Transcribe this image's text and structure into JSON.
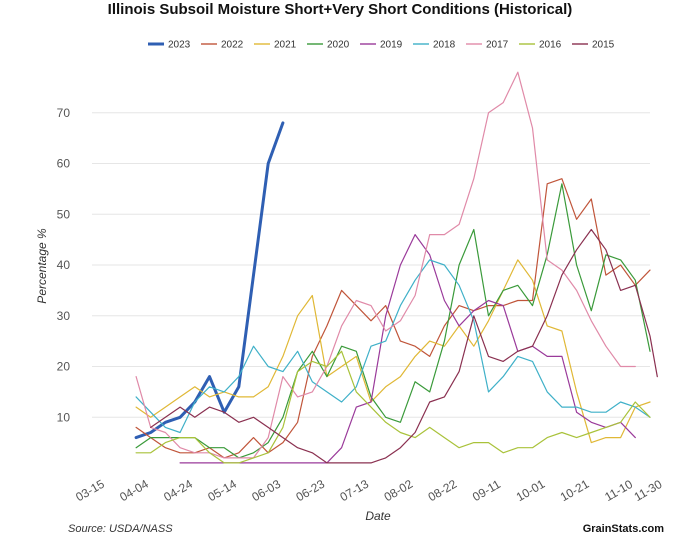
{
  "chart_data": {
    "type": "line",
    "title": "Illinois Subsoil Moisture Short+Very Short Conditions (Historical)",
    "xlabel": "Date",
    "ylabel": "Percentage %",
    "source": "Source: USDA/NASS",
    "brand": "GrainStats.com",
    "ylim": [
      0,
      80
    ],
    "yticks": [
      10,
      20,
      30,
      40,
      50,
      60,
      70
    ],
    "xlim": [
      0,
      38
    ],
    "x_ticks": [
      {
        "label": "03-15",
        "x": 0
      },
      {
        "label": "04-04",
        "x": 3
      },
      {
        "label": "04-24",
        "x": 6
      },
      {
        "label": "05-14",
        "x": 9
      },
      {
        "label": "06-03",
        "x": 12
      },
      {
        "label": "06-23",
        "x": 15
      },
      {
        "label": "07-13",
        "x": 18
      },
      {
        "label": "08-02",
        "x": 21
      },
      {
        "label": "08-22",
        "x": 24
      },
      {
        "label": "09-11",
        "x": 27
      },
      {
        "label": "10-01",
        "x": 30
      },
      {
        "label": "10-21",
        "x": 33
      },
      {
        "label": "11-10",
        "x": 36
      },
      {
        "label": "11-30",
        "x": 38
      }
    ],
    "series": [
      {
        "name": "2023",
        "color": "#2f5fb3",
        "width": 3,
        "points": [
          [
            3,
            6
          ],
          [
            4,
            7
          ],
          [
            5,
            9
          ],
          [
            6,
            10
          ],
          [
            7,
            13
          ],
          [
            8,
            18
          ],
          [
            9,
            11
          ],
          [
            10,
            16
          ],
          [
            11,
            38
          ],
          [
            12,
            60
          ],
          [
            13,
            68
          ]
        ]
      },
      {
        "name": "2022",
        "color": "#c0553a",
        "width": 1.2,
        "points": [
          [
            3,
            8
          ],
          [
            4,
            6
          ],
          [
            5,
            4
          ],
          [
            6,
            3
          ],
          [
            7,
            3
          ],
          [
            8,
            4
          ],
          [
            9,
            2
          ],
          [
            10,
            3
          ],
          [
            11,
            6
          ],
          [
            12,
            3
          ],
          [
            13,
            5
          ],
          [
            14,
            9
          ],
          [
            15,
            22
          ],
          [
            16,
            28
          ],
          [
            17,
            35
          ],
          [
            18,
            32
          ],
          [
            19,
            29
          ],
          [
            20,
            32
          ],
          [
            21,
            25
          ],
          [
            22,
            24
          ],
          [
            23,
            22
          ],
          [
            24,
            28
          ],
          [
            25,
            32
          ],
          [
            26,
            31
          ],
          [
            27,
            32
          ],
          [
            28,
            32
          ],
          [
            29,
            33
          ],
          [
            30,
            33
          ],
          [
            31,
            56
          ],
          [
            32,
            57
          ],
          [
            33,
            49
          ],
          [
            34,
            53
          ],
          [
            35,
            38
          ],
          [
            36,
            40
          ],
          [
            37,
            36
          ],
          [
            38,
            39
          ]
        ]
      },
      {
        "name": "2021",
        "color": "#e0b836",
        "width": 1.2,
        "points": [
          [
            3,
            12
          ],
          [
            4,
            10
          ],
          [
            5,
            12
          ],
          [
            6,
            14
          ],
          [
            7,
            16
          ],
          [
            8,
            14
          ],
          [
            9,
            15
          ],
          [
            10,
            14
          ],
          [
            11,
            14
          ],
          [
            12,
            16
          ],
          [
            13,
            22
          ],
          [
            14,
            30
          ],
          [
            15,
            34
          ],
          [
            16,
            18
          ],
          [
            17,
            20
          ],
          [
            18,
            22
          ],
          [
            19,
            13
          ],
          [
            20,
            16
          ],
          [
            21,
            18
          ],
          [
            22,
            22
          ],
          [
            23,
            25
          ],
          [
            24,
            24
          ],
          [
            25,
            28
          ],
          [
            26,
            24
          ],
          [
            27,
            29
          ],
          [
            28,
            35
          ],
          [
            29,
            41
          ],
          [
            30,
            37
          ],
          [
            31,
            28
          ],
          [
            32,
            27
          ],
          [
            33,
            15
          ],
          [
            34,
            5
          ],
          [
            35,
            6
          ],
          [
            36,
            6
          ],
          [
            37,
            12
          ],
          [
            38,
            13
          ]
        ]
      },
      {
        "name": "2020",
        "color": "#3a9a3a",
        "width": 1.2,
        "points": [
          [
            3,
            4
          ],
          [
            4,
            6
          ],
          [
            5,
            6
          ],
          [
            6,
            6
          ],
          [
            7,
            6
          ],
          [
            8,
            4
          ],
          [
            9,
            4
          ],
          [
            10,
            2
          ],
          [
            11,
            3
          ],
          [
            12,
            5
          ],
          [
            13,
            10
          ],
          [
            14,
            19
          ],
          [
            15,
            23
          ],
          [
            16,
            18
          ],
          [
            17,
            24
          ],
          [
            18,
            23
          ],
          [
            19,
            14
          ],
          [
            20,
            10
          ],
          [
            21,
            9
          ],
          [
            22,
            17
          ],
          [
            23,
            15
          ],
          [
            24,
            25
          ],
          [
            25,
            40
          ],
          [
            26,
            47
          ],
          [
            27,
            30
          ],
          [
            28,
            35
          ],
          [
            29,
            36
          ],
          [
            30,
            32
          ],
          [
            31,
            42
          ],
          [
            32,
            56
          ],
          [
            33,
            40
          ],
          [
            34,
            31
          ],
          [
            35,
            42
          ],
          [
            36,
            41
          ],
          [
            37,
            37
          ],
          [
            38,
            23
          ]
        ]
      },
      {
        "name": "2019",
        "color": "#9a3a9a",
        "width": 1.2,
        "points": [
          [
            6,
            1
          ],
          [
            7,
            1
          ],
          [
            8,
            1
          ],
          [
            9,
            1
          ],
          [
            10,
            1
          ],
          [
            11,
            1
          ],
          [
            12,
            1
          ],
          [
            13,
            1
          ],
          [
            14,
            1
          ],
          [
            15,
            1
          ],
          [
            16,
            1
          ],
          [
            17,
            4
          ],
          [
            18,
            12
          ],
          [
            19,
            13
          ],
          [
            20,
            30
          ],
          [
            21,
            40
          ],
          [
            22,
            46
          ],
          [
            23,
            42
          ],
          [
            24,
            33
          ],
          [
            25,
            28
          ],
          [
            26,
            31
          ],
          [
            27,
            33
          ],
          [
            28,
            32
          ],
          [
            29,
            23
          ],
          [
            30,
            24
          ],
          [
            31,
            22
          ],
          [
            32,
            22
          ],
          [
            33,
            11
          ],
          [
            34,
            9
          ],
          [
            35,
            8
          ],
          [
            36,
            9
          ],
          [
            37,
            6
          ]
        ]
      },
      {
        "name": "2018",
        "color": "#3fb0c8",
        "width": 1.2,
        "points": [
          [
            3,
            14
          ],
          [
            4,
            11
          ],
          [
            5,
            8
          ],
          [
            6,
            7
          ],
          [
            7,
            13
          ],
          [
            8,
            16
          ],
          [
            9,
            15
          ],
          [
            10,
            18
          ],
          [
            11,
            24
          ],
          [
            12,
            20
          ],
          [
            13,
            19
          ],
          [
            14,
            23
          ],
          [
            15,
            17
          ],
          [
            16,
            15
          ],
          [
            17,
            13
          ],
          [
            18,
            16
          ],
          [
            19,
            24
          ],
          [
            20,
            25
          ],
          [
            21,
            32
          ],
          [
            22,
            37
          ],
          [
            23,
            41
          ],
          [
            24,
            40
          ],
          [
            25,
            36
          ],
          [
            26,
            29
          ],
          [
            27,
            15
          ],
          [
            28,
            18
          ],
          [
            29,
            22
          ],
          [
            30,
            21
          ],
          [
            31,
            15
          ],
          [
            32,
            12
          ],
          [
            33,
            12
          ],
          [
            34,
            11
          ],
          [
            35,
            11
          ],
          [
            36,
            13
          ],
          [
            37,
            12
          ],
          [
            38,
            10
          ]
        ]
      },
      {
        "name": "2017",
        "color": "#e08aa8",
        "width": 1.2,
        "points": [
          [
            3,
            18
          ],
          [
            4,
            8
          ],
          [
            5,
            7
          ],
          [
            6,
            4
          ],
          [
            7,
            3
          ],
          [
            8,
            3
          ],
          [
            9,
            2
          ],
          [
            10,
            2
          ],
          [
            11,
            2
          ],
          [
            12,
            6
          ],
          [
            13,
            18
          ],
          [
            14,
            14
          ],
          [
            15,
            15
          ],
          [
            16,
            20
          ],
          [
            17,
            28
          ],
          [
            18,
            33
          ],
          [
            19,
            32
          ],
          [
            20,
            27
          ],
          [
            21,
            29
          ],
          [
            22,
            34
          ],
          [
            23,
            46
          ],
          [
            24,
            46
          ],
          [
            25,
            48
          ],
          [
            26,
            57
          ],
          [
            27,
            70
          ],
          [
            28,
            72
          ],
          [
            29,
            78
          ],
          [
            30,
            67
          ],
          [
            31,
            41
          ],
          [
            32,
            39
          ],
          [
            33,
            35
          ],
          [
            34,
            29
          ],
          [
            35,
            24
          ],
          [
            36,
            20
          ],
          [
            37,
            20
          ]
        ]
      },
      {
        "name": "2016",
        "color": "#a9c23a",
        "width": 1.2,
        "points": [
          [
            3,
            3
          ],
          [
            4,
            3
          ],
          [
            5,
            5
          ],
          [
            6,
            6
          ],
          [
            7,
            6
          ],
          [
            8,
            3
          ],
          [
            9,
            1
          ],
          [
            10,
            1
          ],
          [
            11,
            2
          ],
          [
            12,
            3
          ],
          [
            13,
            8
          ],
          [
            14,
            19
          ],
          [
            15,
            21
          ],
          [
            16,
            20
          ],
          [
            17,
            23
          ],
          [
            18,
            15
          ],
          [
            19,
            12
          ],
          [
            20,
            9
          ],
          [
            21,
            7
          ],
          [
            22,
            6
          ],
          [
            23,
            8
          ],
          [
            24,
            6
          ],
          [
            25,
            4
          ],
          [
            26,
            5
          ],
          [
            27,
            5
          ],
          [
            28,
            3
          ],
          [
            29,
            4
          ],
          [
            30,
            4
          ],
          [
            31,
            6
          ],
          [
            32,
            7
          ],
          [
            33,
            6
          ],
          [
            34,
            7
          ],
          [
            35,
            8
          ],
          [
            36,
            9
          ],
          [
            37,
            13
          ],
          [
            38,
            10
          ]
        ]
      },
      {
        "name": "2015",
        "color": "#8a3050",
        "width": 1.2,
        "points": [
          [
            4,
            8
          ],
          [
            5,
            10
          ],
          [
            6,
            12
          ],
          [
            7,
            10
          ],
          [
            8,
            12
          ],
          [
            9,
            11
          ],
          [
            10,
            9
          ],
          [
            11,
            10
          ],
          [
            12,
            8
          ],
          [
            13,
            6
          ],
          [
            14,
            4
          ],
          [
            15,
            3
          ],
          [
            16,
            1
          ],
          [
            17,
            1
          ],
          [
            18,
            1
          ],
          [
            19,
            1
          ],
          [
            20,
            2
          ],
          [
            21,
            4
          ],
          [
            22,
            7
          ],
          [
            23,
            13
          ],
          [
            24,
            14
          ],
          [
            25,
            19
          ],
          [
            26,
            30
          ],
          [
            27,
            22
          ],
          [
            28,
            21
          ],
          [
            29,
            23
          ],
          [
            30,
            24
          ],
          [
            31,
            30
          ],
          [
            32,
            38
          ],
          [
            33,
            43
          ],
          [
            34,
            47
          ],
          [
            35,
            43
          ],
          [
            36,
            35
          ],
          [
            37,
            36
          ],
          [
            38,
            26
          ],
          [
            38.5,
            18
          ]
        ]
      }
    ]
  }
}
